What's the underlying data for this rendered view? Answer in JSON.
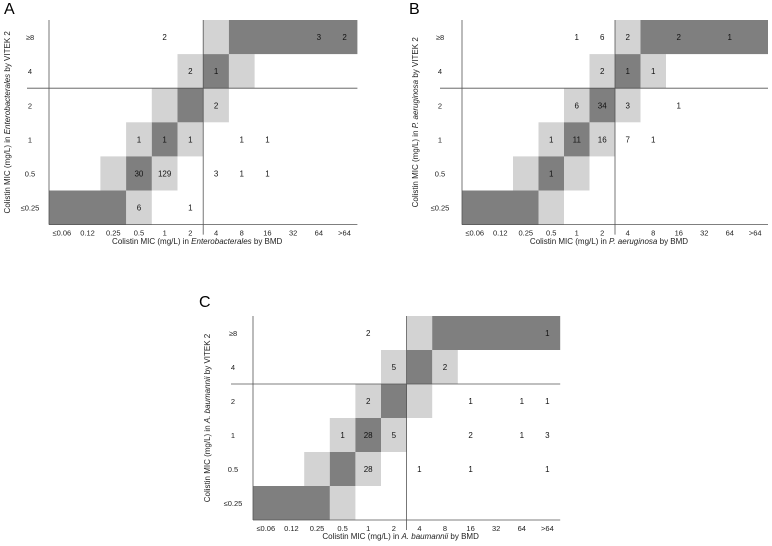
{
  "style": {
    "light": "#d3d3d3",
    "dark": "#7f7f7f",
    "line": "#555555",
    "text": "#222222"
  },
  "chart_data": [
    {
      "type": "heatmap",
      "panel": "A",
      "x_categories": [
        "≤0.06",
        "0.12",
        "0.25",
        "0.5",
        "1",
        "2",
        "4",
        "8",
        "16",
        "32",
        "64",
        ">64"
      ],
      "y_categories": [
        "≤0.25",
        "0.5",
        "1",
        "2",
        "4",
        "≥8"
      ],
      "xlabel": [
        "Colistin MIC (mg/L) in ",
        "Enterobacterales",
        " by BMD"
      ],
      "ylabel": [
        "Colistin MIC (mg/L) in ",
        "Enterobacterales",
        " by VITEK 2"
      ],
      "breakpoint": {
        "x_after": "2",
        "y_after": "2"
      },
      "counts": [
        {
          "x": "0.5",
          "y": "≤0.25",
          "v": 6
        },
        {
          "x": "2",
          "y": "≤0.25",
          "v": 1
        },
        {
          "x": "0.5",
          "y": "0.5",
          "v": 30
        },
        {
          "x": "1",
          "y": "0.5",
          "v": 129
        },
        {
          "x": "4",
          "y": "0.5",
          "v": 3
        },
        {
          "x": "8",
          "y": "0.5",
          "v": 1
        },
        {
          "x": "16",
          "y": "0.5",
          "v": 1
        },
        {
          "x": "0.5",
          "y": "1",
          "v": 1
        },
        {
          "x": "1",
          "y": "1",
          "v": 1
        },
        {
          "x": "2",
          "y": "1",
          "v": 1
        },
        {
          "x": "8",
          "y": "1",
          "v": 1
        },
        {
          "x": "16",
          "y": "1",
          "v": 1
        },
        {
          "x": "4",
          "y": "2",
          "v": 2
        },
        {
          "x": "2",
          "y": "4",
          "v": 2
        },
        {
          "x": "4",
          "y": "4",
          "v": 1
        },
        {
          "x": "1",
          "y": "≥8",
          "v": 2
        },
        {
          "x": "64",
          "y": "≥8",
          "v": 3
        },
        {
          "x": ">64",
          "y": "≥8",
          "v": 2
        }
      ],
      "dark_cells": [
        {
          "x0": "≤0.06",
          "x1": "0.25",
          "y": "≤0.25"
        },
        {
          "x0": "0.5",
          "x1": "0.5",
          "y": "0.5"
        },
        {
          "x0": "1",
          "x1": "1",
          "y": "1"
        },
        {
          "x0": "2",
          "x1": "2",
          "y": "2"
        },
        {
          "x0": "4",
          "x1": "4",
          "y": "4"
        },
        {
          "x0": "8",
          "x1": ">64",
          "y": "≥8"
        }
      ],
      "light_cells": [
        {
          "x": "0.5",
          "y": "≤0.25"
        },
        {
          "x": "0.25",
          "y": "0.5"
        },
        {
          "x": "1",
          "y": "0.5"
        },
        {
          "x": "0.5",
          "y": "1"
        },
        {
          "x": "2",
          "y": "1"
        },
        {
          "x": "1",
          "y": "2"
        },
        {
          "x": "4",
          "y": "2"
        },
        {
          "x": "2",
          "y": "4"
        },
        {
          "x": "8",
          "y": "4"
        },
        {
          "x": "4",
          "y": "≥8"
        }
      ]
    },
    {
      "type": "heatmap",
      "panel": "B",
      "x_categories": [
        "≤0.06",
        "0.12",
        "0.25",
        "0.5",
        "1",
        "2",
        "4",
        "8",
        "16",
        "32",
        "64",
        ">64"
      ],
      "y_categories": [
        "≤0.25",
        "0.5",
        "1",
        "2",
        "4",
        "≥8"
      ],
      "xlabel": [
        "Colistin MIC (mg/L) in ",
        "P. aeruginosa",
        " by BMD"
      ],
      "ylabel": [
        "Colistin MIC (mg/L) in ",
        "P. aeruginosa",
        " by VITEK 2"
      ],
      "breakpoint": {
        "x_after": "2",
        "y_after": "2"
      },
      "counts": [
        {
          "x": "0.5",
          "y": "0.5",
          "v": 1
        },
        {
          "x": "0.5",
          "y": "1",
          "v": 1
        },
        {
          "x": "1",
          "y": "1",
          "v": 11
        },
        {
          "x": "2",
          "y": "1",
          "v": 16
        },
        {
          "x": "4",
          "y": "1",
          "v": 7
        },
        {
          "x": "8",
          "y": "1",
          "v": 1
        },
        {
          "x": "1",
          "y": "2",
          "v": 6
        },
        {
          "x": "2",
          "y": "2",
          "v": 34
        },
        {
          "x": "4",
          "y": "2",
          "v": 3
        },
        {
          "x": "16",
          "y": "2",
          "v": 1
        },
        {
          "x": "2",
          "y": "4",
          "v": 2
        },
        {
          "x": "4",
          "y": "4",
          "v": 1
        },
        {
          "x": "8",
          "y": "4",
          "v": 1
        },
        {
          "x": "1",
          "y": "≥8",
          "v": 1
        },
        {
          "x": "2",
          "y": "≥8",
          "v": 6
        },
        {
          "x": "4",
          "y": "≥8",
          "v": 2
        },
        {
          "x": "16",
          "y": "≥8",
          "v": 2
        },
        {
          "x": "64",
          "y": "≥8",
          "v": 1
        }
      ],
      "dark_cells": [
        {
          "x0": "≤0.06",
          "x1": "0.25",
          "y": "≤0.25"
        },
        {
          "x0": "0.5",
          "x1": "0.5",
          "y": "0.5"
        },
        {
          "x0": "1",
          "x1": "1",
          "y": "1"
        },
        {
          "x0": "2",
          "x1": "2",
          "y": "2"
        },
        {
          "x0": "4",
          "x1": "4",
          "y": "4"
        },
        {
          "x0": "8",
          "x1": ">64",
          "y": "≥8"
        }
      ],
      "light_cells": [
        {
          "x": "0.5",
          "y": "≤0.25"
        },
        {
          "x": "0.25",
          "y": "0.5"
        },
        {
          "x": "1",
          "y": "0.5"
        },
        {
          "x": "0.5",
          "y": "1"
        },
        {
          "x": "2",
          "y": "1"
        },
        {
          "x": "1",
          "y": "2"
        },
        {
          "x": "4",
          "y": "2"
        },
        {
          "x": "2",
          "y": "4"
        },
        {
          "x": "8",
          "y": "4"
        },
        {
          "x": "4",
          "y": "≥8"
        }
      ]
    },
    {
      "type": "heatmap",
      "panel": "C",
      "x_categories": [
        "≤0.06",
        "0.12",
        "0.25",
        "0.5",
        "1",
        "2",
        "4",
        "8",
        "16",
        "32",
        "64",
        ">64"
      ],
      "y_categories": [
        "≤0.25",
        "0.5",
        "1",
        "2",
        "4",
        "≥8"
      ],
      "xlabel": [
        "Colistin MIC (mg/L) in ",
        "A. baumannii",
        " by BMD"
      ],
      "ylabel": [
        "Colistin MIC (mg/L) in ",
        "A. baumannii",
        " by VITEK 2"
      ],
      "breakpoint": {
        "x_after": "2",
        "y_after": "2"
      },
      "counts": [
        {
          "x": "1",
          "y": "0.5",
          "v": 28
        },
        {
          "x": "4",
          "y": "0.5",
          "v": 1
        },
        {
          "x": "16",
          "y": "0.5",
          "v": 1
        },
        {
          "x": ">64",
          "y": "0.5",
          "v": 1
        },
        {
          "x": "0.5",
          "y": "1",
          "v": 1
        },
        {
          "x": "1",
          "y": "1",
          "v": 28
        },
        {
          "x": "2",
          "y": "1",
          "v": 5
        },
        {
          "x": "16",
          "y": "1",
          "v": 2
        },
        {
          "x": "64",
          "y": "1",
          "v": 1
        },
        {
          "x": ">64",
          "y": "1",
          "v": 3
        },
        {
          "x": "1",
          "y": "2",
          "v": 2
        },
        {
          "x": "16",
          "y": "2",
          "v": 1
        },
        {
          "x": "64",
          "y": "2",
          "v": 1
        },
        {
          "x": ">64",
          "y": "2",
          "v": 1
        },
        {
          "x": "2",
          "y": "4",
          "v": 5
        },
        {
          "x": "8",
          "y": "4",
          "v": 2
        },
        {
          "x": "1",
          "y": "≥8",
          "v": 2
        },
        {
          "x": ">64",
          "y": "≥8",
          "v": 1
        }
      ],
      "dark_cells": [
        {
          "x0": "≤0.06",
          "x1": "0.25",
          "y": "≤0.25"
        },
        {
          "x0": "0.5",
          "x1": "0.5",
          "y": "0.5"
        },
        {
          "x0": "1",
          "x1": "1",
          "y": "1"
        },
        {
          "x0": "2",
          "x1": "2",
          "y": "2"
        },
        {
          "x0": "4",
          "x1": "4",
          "y": "4"
        },
        {
          "x0": "8",
          "x1": ">64",
          "y": "≥8"
        }
      ],
      "light_cells": [
        {
          "x": "0.5",
          "y": "≤0.25"
        },
        {
          "x": "0.25",
          "y": "0.5"
        },
        {
          "x": "1",
          "y": "0.5"
        },
        {
          "x": "0.5",
          "y": "1"
        },
        {
          "x": "2",
          "y": "1"
        },
        {
          "x": "1",
          "y": "2"
        },
        {
          "x": "4",
          "y": "2"
        },
        {
          "x": "2",
          "y": "4"
        },
        {
          "x": "8",
          "y": "4"
        },
        {
          "x": "4",
          "y": "≥8"
        }
      ]
    }
  ]
}
